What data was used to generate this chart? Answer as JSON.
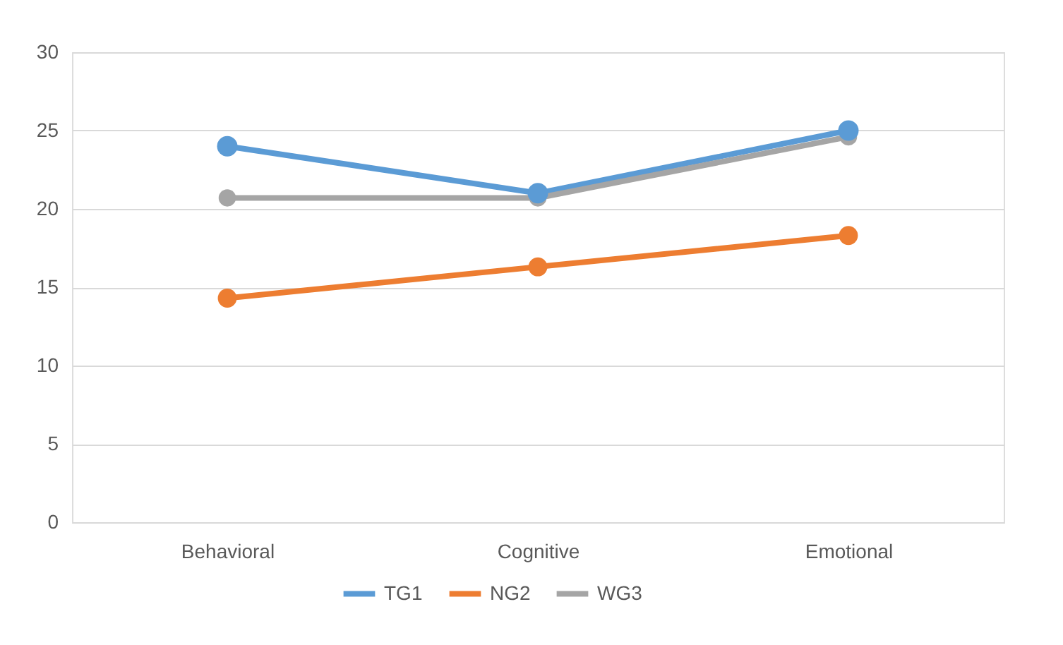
{
  "chart_data": {
    "type": "line",
    "categories": [
      "Behavioral",
      "Cognitive",
      "Emotional"
    ],
    "series": [
      {
        "name": "TG1",
        "color": "#5b9bd5",
        "values": [
          24,
          21,
          25
        ]
      },
      {
        "name": "NG2",
        "color": "#ed7d31",
        "values": [
          14.3,
          16.3,
          18.3
        ]
      },
      {
        "name": "WG3",
        "color": "#a5a5a5",
        "values": [
          20.7,
          20.7,
          24.6
        ]
      }
    ],
    "ylim": [
      0,
      30
    ],
    "yticks": [
      0,
      5,
      10,
      15,
      20,
      25,
      30
    ],
    "grid": "y",
    "legend": "bottom",
    "marker": "circle",
    "line_style": "solid"
  }
}
